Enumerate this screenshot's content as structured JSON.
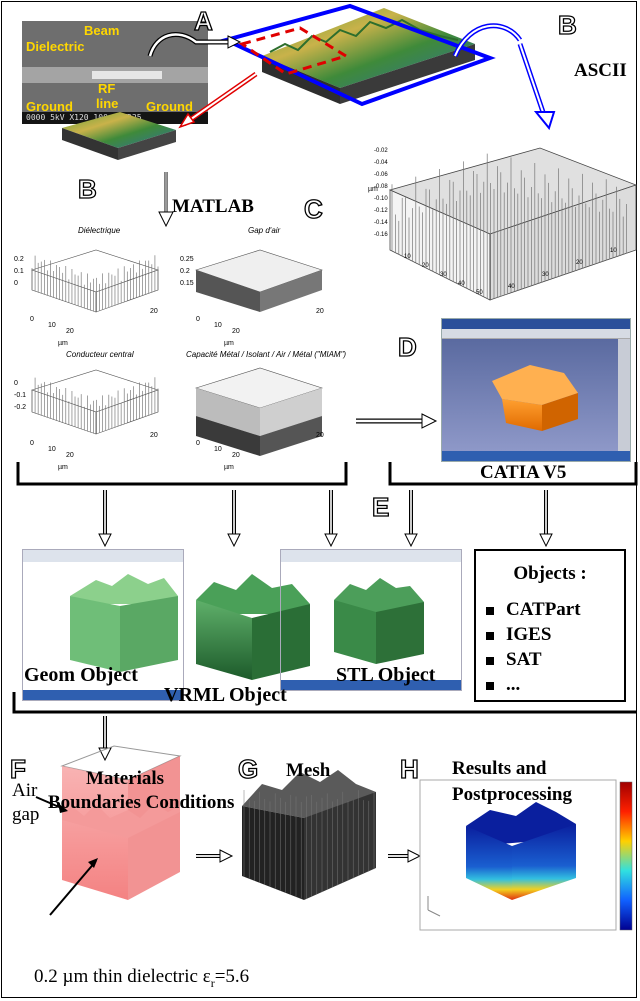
{
  "letters": {
    "a": "A",
    "b1": "B",
    "b2": "B",
    "c": "C",
    "d": "D",
    "e": "E",
    "f": "F",
    "g": "G",
    "h": "H"
  },
  "sem_labels": {
    "beam": "Beam",
    "dielectric": "Dielectric",
    "rf": "RF",
    "line": "line",
    "ground_left": "Ground",
    "ground_right": "Ground",
    "scale": "0000  5kV  X120  100µm  WD25"
  },
  "labels": {
    "ascii": "ASCII",
    "matlab": "MATLAB",
    "catia": "CATIA V5",
    "geom": "Geom Object",
    "vrml": "VRML Object",
    "stl": "STL Object",
    "materials": "Materials",
    "boundaries": "Boundaries Conditions",
    "mesh": "Mesh",
    "results": "Results and",
    "postprocessing": "Postprocessing",
    "air": "Air",
    "gap": "gap",
    "dielectric_prefix": "0.2 µm thin dielectric ε",
    "dielectric_sub": "r",
    "dielectric_suffix": "=5.6"
  },
  "objects": {
    "title": "Objects :",
    "items": [
      "CATPart",
      "IGES",
      "SAT",
      "..."
    ]
  },
  "matlab_plots": {
    "titles": [
      "Diélectrique",
      "Gap d'air",
      "Conducteur central",
      "Capacité Métal / Isolant / Air / Métal (\"MIAM\")"
    ],
    "axis_unit": "µm",
    "ticks_xy": [
      "0",
      "10",
      "20"
    ],
    "ticks_z1": [
      "0.2",
      "0.1",
      "0"
    ],
    "ticks_z2": [
      "0.25",
      "0.2",
      "0.15"
    ],
    "ticks_z3": [
      "0",
      "-0.1",
      "-0.2"
    ]
  },
  "ascii_plot": {
    "z_ticks": [
      "-0.02",
      "-0.04",
      "-0.06",
      "-0.08",
      "-0.10",
      "-0.12",
      "-0.14",
      "-0.16"
    ],
    "x_ticks": [
      "10",
      "20",
      "30",
      "40",
      "50"
    ],
    "y_ticks": [
      "40",
      "30",
      "20",
      "10"
    ],
    "unit": "µm"
  },
  "colors": {
    "blue": "#0000ff",
    "red": "#e00000",
    "frame": "#000000"
  }
}
